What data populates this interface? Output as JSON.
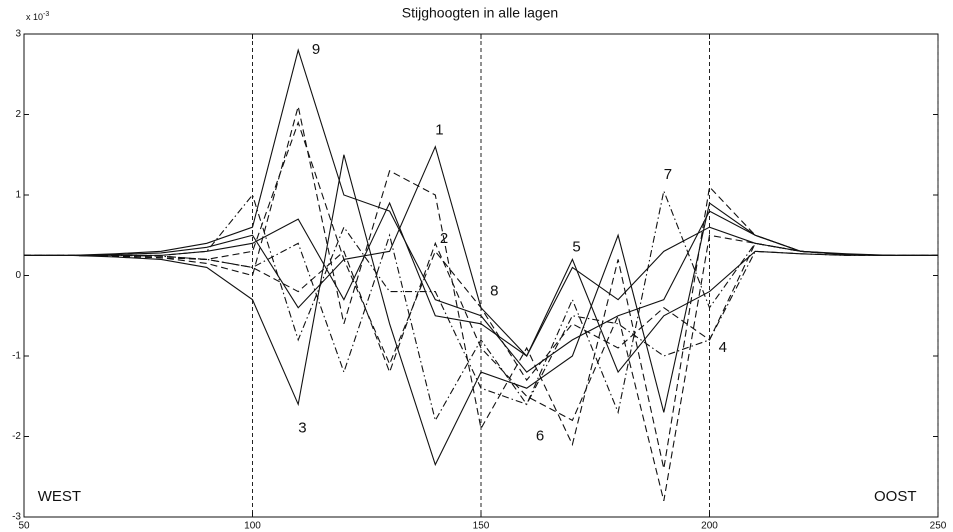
{
  "chart_data": {
    "type": "line",
    "title": "Stijghoogten in alle lagen",
    "axis_multiplier": {
      "base": "x 10",
      "exponent": "-3"
    },
    "x": [
      50,
      60,
      70,
      80,
      90,
      100,
      110,
      120,
      130,
      140,
      150,
      160,
      170,
      180,
      190,
      200,
      210,
      220,
      230,
      240,
      250
    ],
    "series": [
      {
        "color": "#111111",
        "dash": "solid",
        "values": [
          0.25,
          0.25,
          0.26,
          0.28,
          0.35,
          0.5,
          -0.4,
          0.2,
          0.3,
          1.6,
          -0.4,
          -1.0,
          0.1,
          -0.3,
          0.3,
          0.6,
          0.4,
          0.3,
          0.26,
          0.25,
          0.25
        ]
      },
      {
        "color": "#111111",
        "dash": "dashed",
        "values": [
          0.25,
          0.25,
          0.24,
          0.22,
          0.15,
          0.0,
          2.1,
          -0.6,
          1.3,
          1.0,
          -1.9,
          -0.9,
          -2.1,
          0.2,
          -2.4,
          1.1,
          0.5,
          0.3,
          0.26,
          0.25,
          0.25
        ]
      },
      {
        "color": "#111111",
        "dash": "solid",
        "values": [
          0.25,
          0.25,
          0.23,
          0.2,
          0.1,
          -0.3,
          -1.6,
          1.5,
          -0.6,
          -2.35,
          -1.2,
          -1.4,
          -1.0,
          0.5,
          -1.7,
          0.9,
          0.5,
          0.3,
          0.26,
          0.25,
          0.25
        ]
      },
      {
        "color": "#111111",
        "dash": "dashdot",
        "values": [
          0.25,
          0.25,
          0.25,
          0.24,
          0.2,
          0.1,
          0.4,
          -1.2,
          0.5,
          -1.8,
          -0.8,
          -1.6,
          -0.5,
          -0.6,
          -1.0,
          -0.8,
          0.3,
          0.27,
          0.25,
          0.25,
          0.25
        ]
      },
      {
        "color": "#111111",
        "dash": "solid",
        "values": [
          0.25,
          0.25,
          0.25,
          0.25,
          0.3,
          0.4,
          0.7,
          -0.3,
          0.9,
          -0.5,
          -0.6,
          -1.0,
          0.2,
          -1.2,
          -0.5,
          -0.2,
          0.3,
          0.27,
          0.25,
          0.25,
          0.25
        ]
      },
      {
        "color": "#111111",
        "dash": "dashed",
        "values": [
          0.25,
          0.25,
          0.24,
          0.22,
          0.2,
          0.1,
          -0.2,
          0.3,
          -1.2,
          0.4,
          -0.9,
          -1.5,
          -1.8,
          -0.5,
          -2.8,
          0.5,
          0.4,
          0.3,
          0.26,
          0.25,
          0.25
        ]
      },
      {
        "color": "#111111",
        "dash": "dashdot",
        "values": [
          0.25,
          0.25,
          0.25,
          0.25,
          0.3,
          1.0,
          -0.8,
          0.6,
          -0.2,
          -0.2,
          -1.4,
          -1.6,
          -0.3,
          -1.7,
          1.05,
          -0.4,
          0.4,
          0.3,
          0.26,
          0.25,
          0.25
        ]
      },
      {
        "color": "#111111",
        "dash": "dashed",
        "values": [
          0.25,
          0.25,
          0.25,
          0.24,
          0.2,
          0.3,
          1.9,
          0.2,
          -1.1,
          0.3,
          -0.4,
          -1.3,
          -0.6,
          -0.9,
          -0.4,
          -0.8,
          0.4,
          0.3,
          0.26,
          0.25,
          0.25
        ]
      },
      {
        "color": "#111111",
        "dash": "solid",
        "values": [
          0.25,
          0.25,
          0.27,
          0.3,
          0.4,
          0.6,
          2.8,
          1.0,
          0.8,
          -0.3,
          -0.5,
          -1.2,
          -0.8,
          -0.5,
          -0.3,
          0.8,
          0.5,
          0.3,
          0.27,
          0.25,
          0.25
        ]
      }
    ],
    "xlim": [
      50,
      250
    ],
    "xticks": [
      50,
      100,
      150,
      200,
      250
    ],
    "ylim": [
      -3,
      3
    ],
    "yticks": [
      -3,
      -2,
      -1,
      0,
      1,
      2,
      3
    ],
    "vlines": [
      100,
      150,
      200,
      250
    ],
    "annotations": [
      {
        "text": "9",
        "x": 113,
        "y": 2.8
      },
      {
        "text": "1",
        "x": 140,
        "y": 1.8
      },
      {
        "text": "2",
        "x": 141,
        "y": 0.45
      },
      {
        "text": "3",
        "x": 110,
        "y": -1.9
      },
      {
        "text": "8",
        "x": 152,
        "y": -0.2
      },
      {
        "text": "5",
        "x": 170,
        "y": 0.35
      },
      {
        "text": "6",
        "x": 162,
        "y": -2.0
      },
      {
        "text": "7",
        "x": 190,
        "y": 1.25
      },
      {
        "text": "4",
        "x": 202,
        "y": -0.9
      },
      {
        "text": "WEST",
        "x": 53,
        "y": -2.75
      },
      {
        "text": "OOST",
        "x": 236,
        "y": -2.75
      }
    ]
  }
}
